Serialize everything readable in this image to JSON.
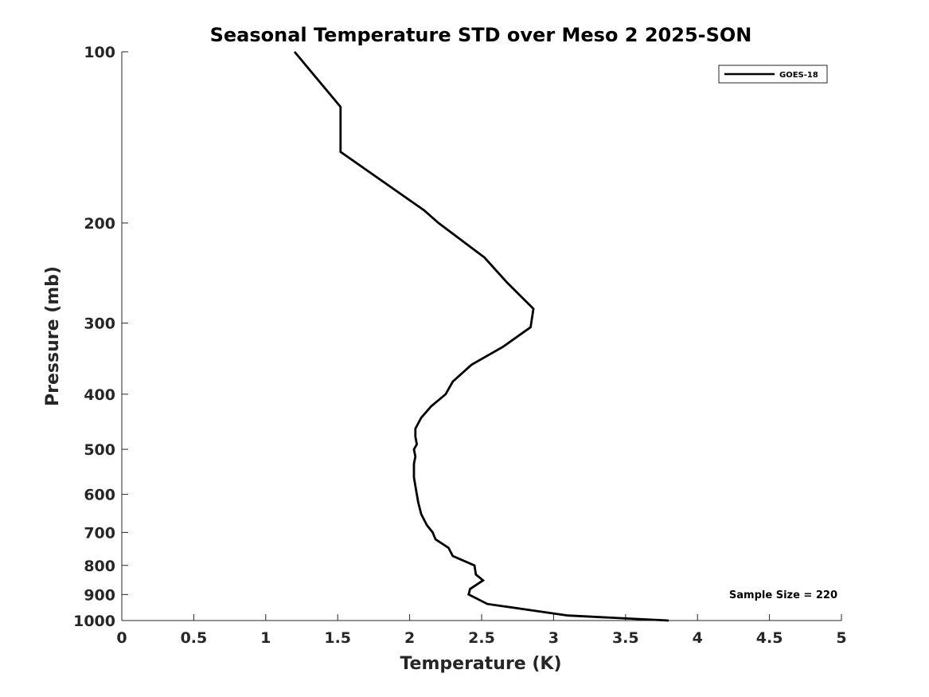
{
  "chart_data": {
    "type": "line",
    "title": "Seasonal Temperature STD over Meso 2  2025-SON",
    "xlabel": "Temperature (K)",
    "ylabel": "Pressure (mb)",
    "xlim": [
      0,
      5
    ],
    "ylim": [
      100,
      1000
    ],
    "y_scale": "log",
    "y_reversed": true,
    "grid": false,
    "legend_position": "top-right",
    "x_ticks": [
      "0",
      "0.5",
      "1",
      "1.5",
      "2",
      "2.5",
      "3",
      "3.5",
      "4",
      "4.5",
      "5"
    ],
    "y_ticks": [
      "100",
      "200",
      "300",
      "400",
      "500",
      "600",
      "700",
      "800",
      "900",
      "1000"
    ],
    "series": [
      {
        "name": "GOES-18",
        "color": "#000000",
        "x": [
          1.2,
          1.52,
          1.52,
          2.1,
          2.2,
          2.52,
          2.68,
          2.86,
          2.84,
          2.65,
          2.43,
          2.3,
          2.25,
          2.15,
          2.08,
          2.04,
          2.04,
          2.05,
          2.03,
          2.04,
          2.03,
          2.03,
          2.04,
          2.05,
          2.06,
          2.08,
          2.12,
          2.16,
          2.18,
          2.27,
          2.3,
          2.45,
          2.46,
          2.51,
          2.42,
          2.41,
          2.54,
          3.1,
          3.8
        ],
        "y": [
          100,
          125,
          150,
          190,
          200,
          230,
          255,
          283,
          305,
          330,
          355,
          380,
          400,
          420,
          440,
          460,
          475,
          490,
          500,
          515,
          530,
          560,
          580,
          600,
          620,
          650,
          680,
          700,
          720,
          745,
          770,
          800,
          830,
          850,
          880,
          900,
          935,
          980,
          1000
        ]
      }
    ],
    "annotations": [
      "Sample Size = 220"
    ]
  }
}
